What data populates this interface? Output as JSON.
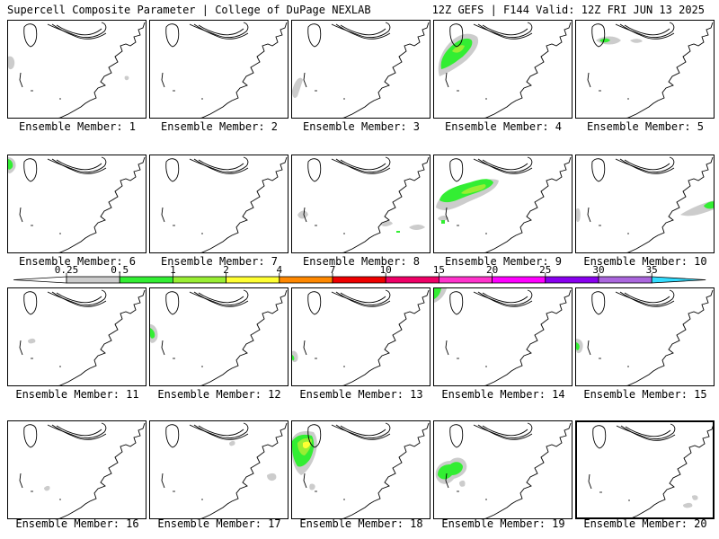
{
  "header": {
    "title_left": "Supercell Composite Parameter | College of DuPage NEXLAB",
    "title_right": "12Z GEFS | F144 Valid: 12Z FRI JUN 13 2025"
  },
  "members": [
    {
      "label": "Ensemble Member: 1"
    },
    {
      "label": "Ensemble Member: 2"
    },
    {
      "label": "Ensemble Member: 3"
    },
    {
      "label": "Ensemble Member: 4"
    },
    {
      "label": "Ensemble Member: 5"
    },
    {
      "label": "Ensemble Member: 6"
    },
    {
      "label": "Ensemble Member: 7"
    },
    {
      "label": "Ensemble Member: 8"
    },
    {
      "label": "Ensemble Member: 9"
    },
    {
      "label": "Ensemble Member: 10"
    },
    {
      "label": "Ensemble Member: 11"
    },
    {
      "label": "Ensemble Member: 12"
    },
    {
      "label": "Ensemble Member: 13"
    },
    {
      "label": "Ensemble Member: 14"
    },
    {
      "label": "Ensemble Member: 15"
    },
    {
      "label": "Ensemble Member: 16"
    },
    {
      "label": "Ensemble Member: 17"
    },
    {
      "label": "Ensemble Member: 18"
    },
    {
      "label": "Ensemble Member: 19"
    },
    {
      "label": "Ensemble Member: 20"
    }
  ],
  "colorbar": {
    "labels": [
      "0.25",
      "0.5",
      "1",
      "2",
      "4",
      "7",
      "10",
      "15",
      "20",
      "25",
      "30",
      "35"
    ],
    "colors": [
      "#cccccc",
      "#33ee33",
      "#99ee33",
      "#ffff33",
      "#ff8800",
      "#ee0000",
      "#ee0066",
      "#ff33cc",
      "#ff00ff",
      "#8800ee",
      "#aa66dd",
      "#33ddff"
    ]
  }
}
